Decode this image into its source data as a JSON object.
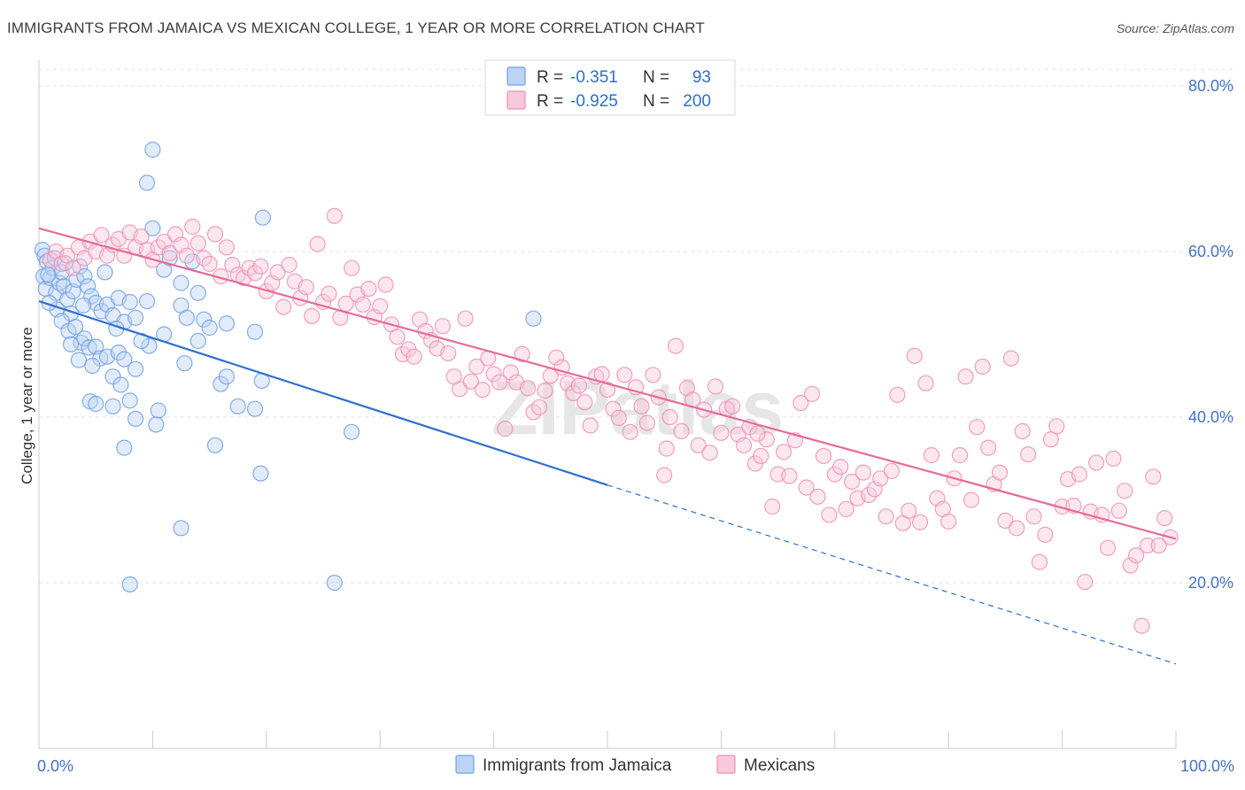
{
  "title": "IMMIGRANTS FROM JAMAICA VS MEXICAN COLLEGE, 1 YEAR OR MORE CORRELATION CHART",
  "source": "Source: ZipAtlas.com",
  "watermark": "ZIPatlas",
  "chart_data": {
    "type": "scatter",
    "ylabel": "College, 1 year or more",
    "xlim": [
      0,
      100
    ],
    "ylim": [
      0,
      82
    ],
    "x_tick_labels": [
      "0.0%",
      "100.0%"
    ],
    "y_ticks": [
      20,
      40,
      60,
      80
    ],
    "y_tick_labels": [
      "20.0%",
      "40.0%",
      "60.0%",
      "80.0%"
    ],
    "grid": true,
    "legend_position": "top-center",
    "legend": [
      {
        "r_label": "R =",
        "r_value": "-0.351",
        "n_label": "N =",
        "n_value": "93"
      },
      {
        "r_label": "R =",
        "r_value": "-0.925",
        "n_label": "N =",
        "n_value": "200"
      }
    ],
    "series": [
      {
        "name": "Immigrants from Jamaica",
        "color": "#6fa0e6",
        "fill": "#bcd3f5",
        "trend": {
          "x0": 0,
          "y0": 54.0,
          "x1": 50,
          "y1": 31.8,
          "dash_to_x": 100,
          "dash_to_y": 10.2,
          "color": "#2f6fcf"
        },
        "points": [
          [
            0.3,
            60.2
          ],
          [
            0.5,
            59.5
          ],
          [
            0.7,
            58.8
          ],
          [
            0.4,
            57.0
          ],
          [
            0.6,
            55.5
          ],
          [
            1.0,
            56.8
          ],
          [
            1.2,
            58.0
          ],
          [
            1.5,
            55.0
          ],
          [
            1.8,
            56.2
          ],
          [
            2.0,
            57.5
          ],
          [
            2.2,
            55.8
          ],
          [
            2.5,
            54.2
          ],
          [
            1.6,
            53.0
          ],
          [
            2.8,
            52.5
          ],
          [
            3.0,
            55.2
          ],
          [
            3.3,
            56.6
          ],
          [
            3.6,
            58.2
          ],
          [
            4.0,
            57.0
          ],
          [
            4.3,
            55.8
          ],
          [
            4.6,
            54.6
          ],
          [
            5.0,
            53.8
          ],
          [
            5.5,
            52.8
          ],
          [
            6.0,
            53.6
          ],
          [
            6.5,
            52.3
          ],
          [
            7.0,
            54.4
          ],
          [
            7.5,
            51.5
          ],
          [
            8.0,
            53.9
          ],
          [
            8.5,
            52.0
          ],
          [
            9.5,
            54.0
          ],
          [
            2.0,
            51.6
          ],
          [
            2.6,
            50.4
          ],
          [
            3.2,
            50.9
          ],
          [
            3.7,
            49.0
          ],
          [
            4.0,
            49.5
          ],
          [
            4.4,
            48.4
          ],
          [
            2.8,
            48.8
          ],
          [
            5.0,
            48.5
          ],
          [
            5.4,
            47.1
          ],
          [
            6.0,
            47.3
          ],
          [
            4.7,
            46.2
          ],
          [
            3.5,
            46.9
          ],
          [
            7.0,
            47.8
          ],
          [
            7.5,
            47.0
          ],
          [
            6.5,
            44.9
          ],
          [
            8.5,
            45.8
          ],
          [
            7.2,
            43.9
          ],
          [
            4.5,
            41.9
          ],
          [
            5.0,
            41.6
          ],
          [
            6.5,
            41.3
          ],
          [
            8.0,
            42.0
          ],
          [
            8.5,
            39.8
          ],
          [
            10.5,
            40.8
          ],
          [
            10.3,
            39.1
          ],
          [
            7.5,
            36.3
          ],
          [
            5.8,
            57.5
          ],
          [
            9.7,
            48.6
          ],
          [
            11.0,
            57.8
          ],
          [
            12.5,
            56.2
          ],
          [
            11.5,
            59.2
          ],
          [
            13.5,
            58.8
          ],
          [
            14.0,
            55.0
          ],
          [
            12.5,
            53.5
          ],
          [
            11.0,
            50.0
          ],
          [
            13.0,
            52.0
          ],
          [
            14.5,
            51.8
          ],
          [
            15.0,
            50.8
          ],
          [
            16.5,
            51.3
          ],
          [
            14.0,
            49.2
          ],
          [
            10.0,
            72.3
          ],
          [
            9.5,
            68.3
          ],
          [
            10.0,
            62.8
          ],
          [
            19.7,
            64.1
          ],
          [
            19.0,
            50.3
          ],
          [
            16.0,
            44.0
          ],
          [
            16.5,
            44.9
          ],
          [
            17.5,
            41.3
          ],
          [
            19.0,
            41.0
          ],
          [
            19.6,
            44.4
          ],
          [
            15.5,
            36.6
          ],
          [
            19.5,
            33.2
          ],
          [
            12.5,
            26.6
          ],
          [
            8.0,
            19.8
          ],
          [
            26.0,
            20.0
          ],
          [
            27.5,
            38.2
          ],
          [
            43.5,
            51.9
          ],
          [
            0.8,
            57.2
          ],
          [
            1.4,
            59.2
          ],
          [
            0.9,
            53.8
          ],
          [
            2.3,
            58.6
          ],
          [
            3.9,
            53.5
          ],
          [
            6.8,
            50.7
          ],
          [
            9.0,
            49.2
          ],
          [
            12.8,
            46.5
          ]
        ]
      },
      {
        "name": "Mexicans",
        "color": "#ee8fb3",
        "fill": "#f8c9da",
        "trend": {
          "x0": 0,
          "y0": 62.8,
          "x1": 100,
          "y1": 25.3,
          "color": "#e66a98"
        },
        "points": [
          [
            1.0,
            59.0
          ],
          [
            1.5,
            60.0
          ],
          [
            2.0,
            58.5
          ],
          [
            2.5,
            59.5
          ],
          [
            3.0,
            58.0
          ],
          [
            3.5,
            60.5
          ],
          [
            4.0,
            59.2
          ],
          [
            4.5,
            61.2
          ],
          [
            5.0,
            60.0
          ],
          [
            5.5,
            62.0
          ],
          [
            6.0,
            59.5
          ],
          [
            6.5,
            60.8
          ],
          [
            7.0,
            61.5
          ],
          [
            7.5,
            59.5
          ],
          [
            8.0,
            62.3
          ],
          [
            8.5,
            60.5
          ],
          [
            9.0,
            61.8
          ],
          [
            9.5,
            60.2
          ],
          [
            10.0,
            59.0
          ],
          [
            10.5,
            60.5
          ],
          [
            11.0,
            61.2
          ],
          [
            11.5,
            59.8
          ],
          [
            12.0,
            62.1
          ],
          [
            12.5,
            60.8
          ],
          [
            13.0,
            59.5
          ],
          [
            13.5,
            63.0
          ],
          [
            14.0,
            61.0
          ],
          [
            14.5,
            59.2
          ],
          [
            15.0,
            58.5
          ],
          [
            15.5,
            62.1
          ],
          [
            16.0,
            57.0
          ],
          [
            16.5,
            60.5
          ],
          [
            17.0,
            58.4
          ],
          [
            17.5,
            57.2
          ],
          [
            18.0,
            56.8
          ],
          [
            18.5,
            58.0
          ],
          [
            19.0,
            57.4
          ],
          [
            19.5,
            58.2
          ],
          [
            20.0,
            55.2
          ],
          [
            20.5,
            56.2
          ],
          [
            21.0,
            57.5
          ],
          [
            21.5,
            53.3
          ],
          [
            22.0,
            58.4
          ],
          [
            22.5,
            56.4
          ],
          [
            23.0,
            54.4
          ],
          [
            23.5,
            55.7
          ],
          [
            24.0,
            52.2
          ],
          [
            24.5,
            60.9
          ],
          [
            25.0,
            53.9
          ],
          [
            25.5,
            54.9
          ],
          [
            26.0,
            64.3
          ],
          [
            26.5,
            52.0
          ],
          [
            27.0,
            53.7
          ],
          [
            27.5,
            58.0
          ],
          [
            28.0,
            54.8
          ],
          [
            28.5,
            53.6
          ],
          [
            29.0,
            55.5
          ],
          [
            29.5,
            52.1
          ],
          [
            30.0,
            53.4
          ],
          [
            30.5,
            56.0
          ],
          [
            31.0,
            51.2
          ],
          [
            31.5,
            49.7
          ],
          [
            32.0,
            47.6
          ],
          [
            32.5,
            48.2
          ],
          [
            33.0,
            47.3
          ],
          [
            33.5,
            51.8
          ],
          [
            34.0,
            50.4
          ],
          [
            34.5,
            49.3
          ],
          [
            35.0,
            48.3
          ],
          [
            35.5,
            51.0
          ],
          [
            36.0,
            47.7
          ],
          [
            37.0,
            43.4
          ],
          [
            37.5,
            51.9
          ],
          [
            38.0,
            44.3
          ],
          [
            38.5,
            46.1
          ],
          [
            39.0,
            43.3
          ],
          [
            39.5,
            47.1
          ],
          [
            40.0,
            45.2
          ],
          [
            40.5,
            44.2
          ],
          [
            41.0,
            38.6
          ],
          [
            41.5,
            45.4
          ],
          [
            42.0,
            44.2
          ],
          [
            42.5,
            47.6
          ],
          [
            43.0,
            43.5
          ],
          [
            43.5,
            40.6
          ],
          [
            44.0,
            41.2
          ],
          [
            44.5,
            43.2
          ],
          [
            45.0,
            45.0
          ],
          [
            45.5,
            47.2
          ],
          [
            46.0,
            46.0
          ],
          [
            46.5,
            44.1
          ],
          [
            47.0,
            42.9
          ],
          [
            47.5,
            43.8
          ],
          [
            48.0,
            41.8
          ],
          [
            48.5,
            39.0
          ],
          [
            49.0,
            44.9
          ],
          [
            49.5,
            45.2
          ],
          [
            50.0,
            43.3
          ],
          [
            50.5,
            41.0
          ],
          [
            51.0,
            39.9
          ],
          [
            51.5,
            45.1
          ],
          [
            52.0,
            38.2
          ],
          [
            52.5,
            43.6
          ],
          [
            53.0,
            41.3
          ],
          [
            53.5,
            39.3
          ],
          [
            54.0,
            45.1
          ],
          [
            54.5,
            42.4
          ],
          [
            55.0,
            33.0
          ],
          [
            55.5,
            40.0
          ],
          [
            56.0,
            48.6
          ],
          [
            56.5,
            38.3
          ],
          [
            57.0,
            43.5
          ],
          [
            57.5,
            42.1
          ],
          [
            58.0,
            36.6
          ],
          [
            58.5,
            40.9
          ],
          [
            59.0,
            35.7
          ],
          [
            59.5,
            43.7
          ],
          [
            60.0,
            38.1
          ],
          [
            60.5,
            41.0
          ],
          [
            61.0,
            41.3
          ],
          [
            61.5,
            37.9
          ],
          [
            62.0,
            36.6
          ],
          [
            62.5,
            38.8
          ],
          [
            63.0,
            34.4
          ],
          [
            63.5,
            35.3
          ],
          [
            64.0,
            37.3
          ],
          [
            64.5,
            29.2
          ],
          [
            65.0,
            33.1
          ],
          [
            65.5,
            35.8
          ],
          [
            66.0,
            32.9
          ],
          [
            66.5,
            37.2
          ],
          [
            67.0,
            41.7
          ],
          [
            67.5,
            31.5
          ],
          [
            68.0,
            42.8
          ],
          [
            68.5,
            30.4
          ],
          [
            69.0,
            35.3
          ],
          [
            69.5,
            28.2
          ],
          [
            70.0,
            33.1
          ],
          [
            70.5,
            34.0
          ],
          [
            71.0,
            28.9
          ],
          [
            71.5,
            32.2
          ],
          [
            72.0,
            30.2
          ],
          [
            72.5,
            33.3
          ],
          [
            73.0,
            30.6
          ],
          [
            73.5,
            31.3
          ],
          [
            74.0,
            32.6
          ],
          [
            74.5,
            28.0
          ],
          [
            75.0,
            33.5
          ],
          [
            75.5,
            42.7
          ],
          [
            76.0,
            27.2
          ],
          [
            76.5,
            28.7
          ],
          [
            77.0,
            47.4
          ],
          [
            77.5,
            27.3
          ],
          [
            78.0,
            44.1
          ],
          [
            78.5,
            35.4
          ],
          [
            79.0,
            30.2
          ],
          [
            79.5,
            28.9
          ],
          [
            80.0,
            27.4
          ],
          [
            80.5,
            32.6
          ],
          [
            81.0,
            35.4
          ],
          [
            81.5,
            44.9
          ],
          [
            82.0,
            30.0
          ],
          [
            82.5,
            38.8
          ],
          [
            83.0,
            46.1
          ],
          [
            83.5,
            36.3
          ],
          [
            84.0,
            31.9
          ],
          [
            84.5,
            33.3
          ],
          [
            85.0,
            27.5
          ],
          [
            85.5,
            47.1
          ],
          [
            86.0,
            26.6
          ],
          [
            86.5,
            38.3
          ],
          [
            87.0,
            35.5
          ],
          [
            87.5,
            28.0
          ],
          [
            88.0,
            22.5
          ],
          [
            88.5,
            25.8
          ],
          [
            89.0,
            37.3
          ],
          [
            89.5,
            38.9
          ],
          [
            90.0,
            29.2
          ],
          [
            90.5,
            32.5
          ],
          [
            91.0,
            29.3
          ],
          [
            91.5,
            33.1
          ],
          [
            92.0,
            20.1
          ],
          [
            92.5,
            28.6
          ],
          [
            93.0,
            34.5
          ],
          [
            93.5,
            28.2
          ],
          [
            94.0,
            24.2
          ],
          [
            94.5,
            35.0
          ],
          [
            95.0,
            28.7
          ],
          [
            95.5,
            31.1
          ],
          [
            96.0,
            22.1
          ],
          [
            96.5,
            23.3
          ],
          [
            97.0,
            14.8
          ],
          [
            97.5,
            24.5
          ],
          [
            98.0,
            32.8
          ],
          [
            98.5,
            24.5
          ],
          [
            99.0,
            27.8
          ],
          [
            99.5,
            25.5
          ],
          [
            36.5,
            44.9
          ],
          [
            55.2,
            36.2
          ],
          [
            63.2,
            38.0
          ]
        ]
      }
    ]
  }
}
